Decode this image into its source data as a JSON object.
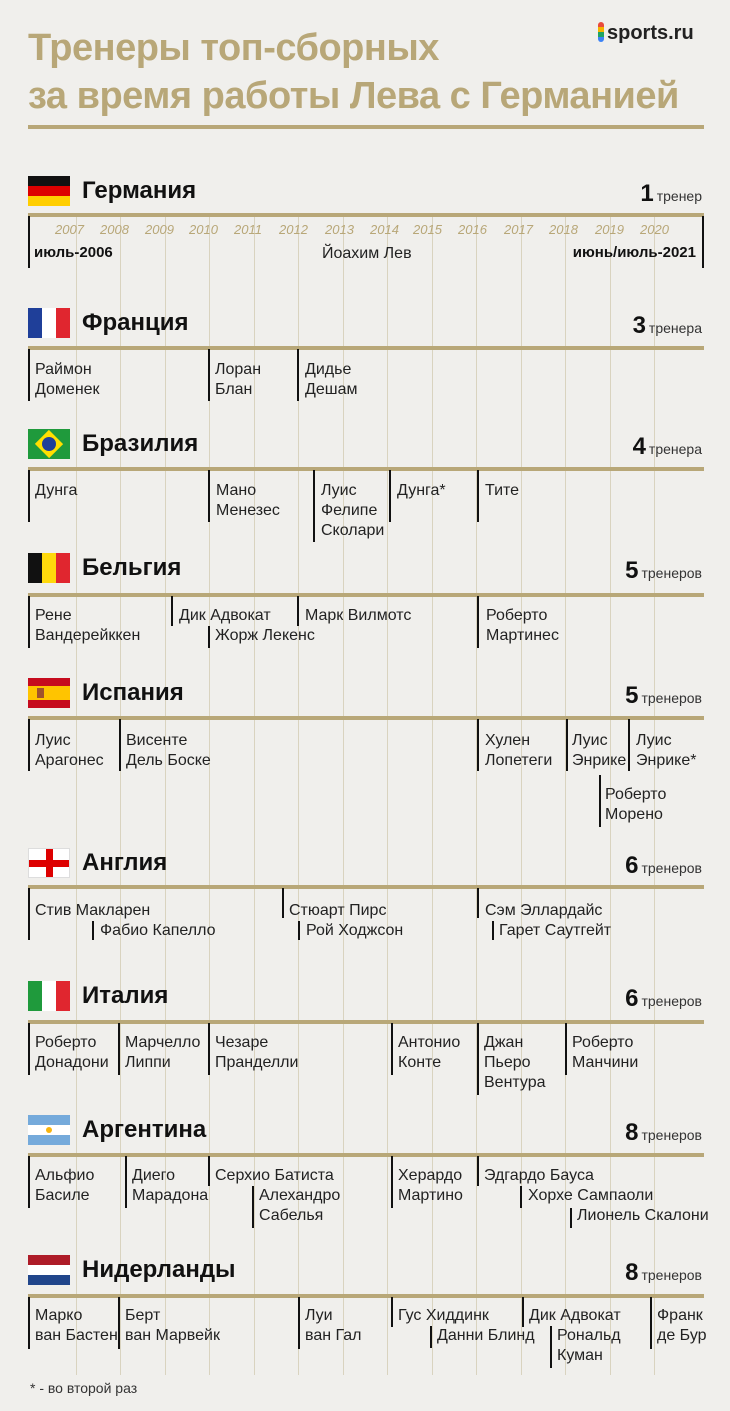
{
  "header": {
    "title_line1": "Тренеры топ-сборных",
    "title_line2": "за время работы Лева с Германией",
    "logo": "sports.ru"
  },
  "germany": {
    "name": "Германия",
    "count_num": "1",
    "count_word": "тренер",
    "years": [
      "2007",
      "2008",
      "2009",
      "2010",
      "2011",
      "2012",
      "2013",
      "2014",
      "2015",
      "2016",
      "2017",
      "2018",
      "2019",
      "2020"
    ],
    "start": "июль-2006",
    "end": "июнь/июль-2021",
    "coach": "Йоахим Лев"
  },
  "countries": [
    {
      "name": "Франция",
      "count_num": "3",
      "count_word": "тренера",
      "coaches": [
        "Раймон\nДоменек",
        "Лоран\nБлан",
        "Дидье\nДешам"
      ]
    },
    {
      "name": "Бразилия",
      "count_num": "4",
      "count_word": "тренера",
      "coaches": [
        "Дунга",
        "Мано\nМенезес",
        "Луис\nФелипе\nСколари",
        "Дунга*",
        "Тите"
      ]
    },
    {
      "name": "Бельгия",
      "count_num": "5",
      "count_word": "тренеров",
      "coaches": [
        "Рене\nВандерейккен",
        "Дик Адвокат",
        "Жорж Лекенс",
        "Марк Вилмотс",
        "Роберто\nМартинес"
      ]
    },
    {
      "name": "Испания",
      "count_num": "5",
      "count_word": "тренеров",
      "coaches": [
        "Луис\nАрагонес",
        "Висенте\nДель Боске",
        "Хулен\nЛопетеги",
        "Луис\nЭнрике",
        "Роберто\nМорено",
        "Луис\nЭнрике*"
      ]
    },
    {
      "name": "Англия",
      "count_num": "6",
      "count_word": "тренеров",
      "coaches": [
        "Стив Макларен",
        "Фабио Капелло",
        "Стюарт Пирс",
        "Рой Ходжсон",
        "Сэм Эллардайс",
        "Гарет Саутгейт"
      ]
    },
    {
      "name": "Италия",
      "count_num": "6",
      "count_word": "тренеров",
      "coaches": [
        "Роберто\nДонадони",
        "Марчелло\nЛиппи",
        "Чезаре\nПранделли",
        "Антонио\nКонте",
        "Джан\nПьеро\nВентура",
        "Роберто\nМанчини"
      ]
    },
    {
      "name": "Аргентина",
      "count_num": "8",
      "count_word": "тренеров",
      "coaches": [
        "Альфио\nБасиле",
        "Диего\nМарадона",
        "Серхио Батиста",
        "Алехандро\nСабелья",
        "Херардо\nМартино",
        "Эдгардо Бауса",
        "Хорхе Сампаоли",
        "Лионель Скалони"
      ]
    },
    {
      "name": "Нидерланды",
      "count_num": "8",
      "count_word": "тренеров",
      "coaches": [
        "Марко\nван Бастен",
        "Берт\nван Марвейк",
        "Луи\nван Гал",
        "Гус Хиддинк",
        "Данни Блинд",
        "Дик Адвокат",
        "Рональд\nКуман",
        "Франк\nде Бур"
      ]
    }
  ],
  "footnote": "* - во второй раз"
}
